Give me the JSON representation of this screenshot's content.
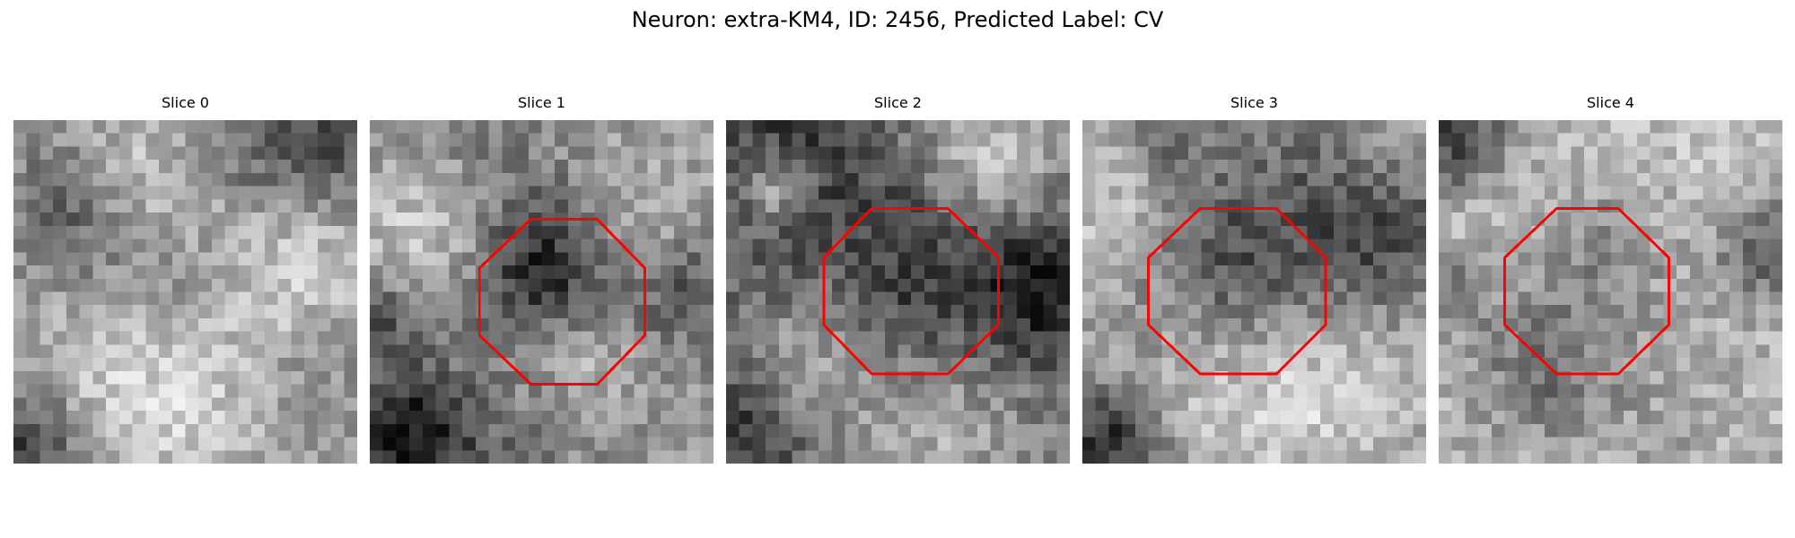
{
  "figure": {
    "title": "Neuron: extra-KM4, ID: 2456, Predicted Label: CV"
  },
  "overlay_color": "#ff0000",
  "panels": [
    {
      "title": "Slice 0",
      "roi_visible": false,
      "roi_shape": "octagon"
    },
    {
      "title": "Slice 1",
      "roi_visible": true,
      "roi_shape": "octagon"
    },
    {
      "title": "Slice 2",
      "roi_visible": true,
      "roi_shape": "octagon"
    },
    {
      "title": "Slice 3",
      "roi_visible": true,
      "roi_shape": "octagon"
    },
    {
      "title": "Slice 4",
      "roi_visible": true,
      "roi_shape": "octagon"
    }
  ]
}
